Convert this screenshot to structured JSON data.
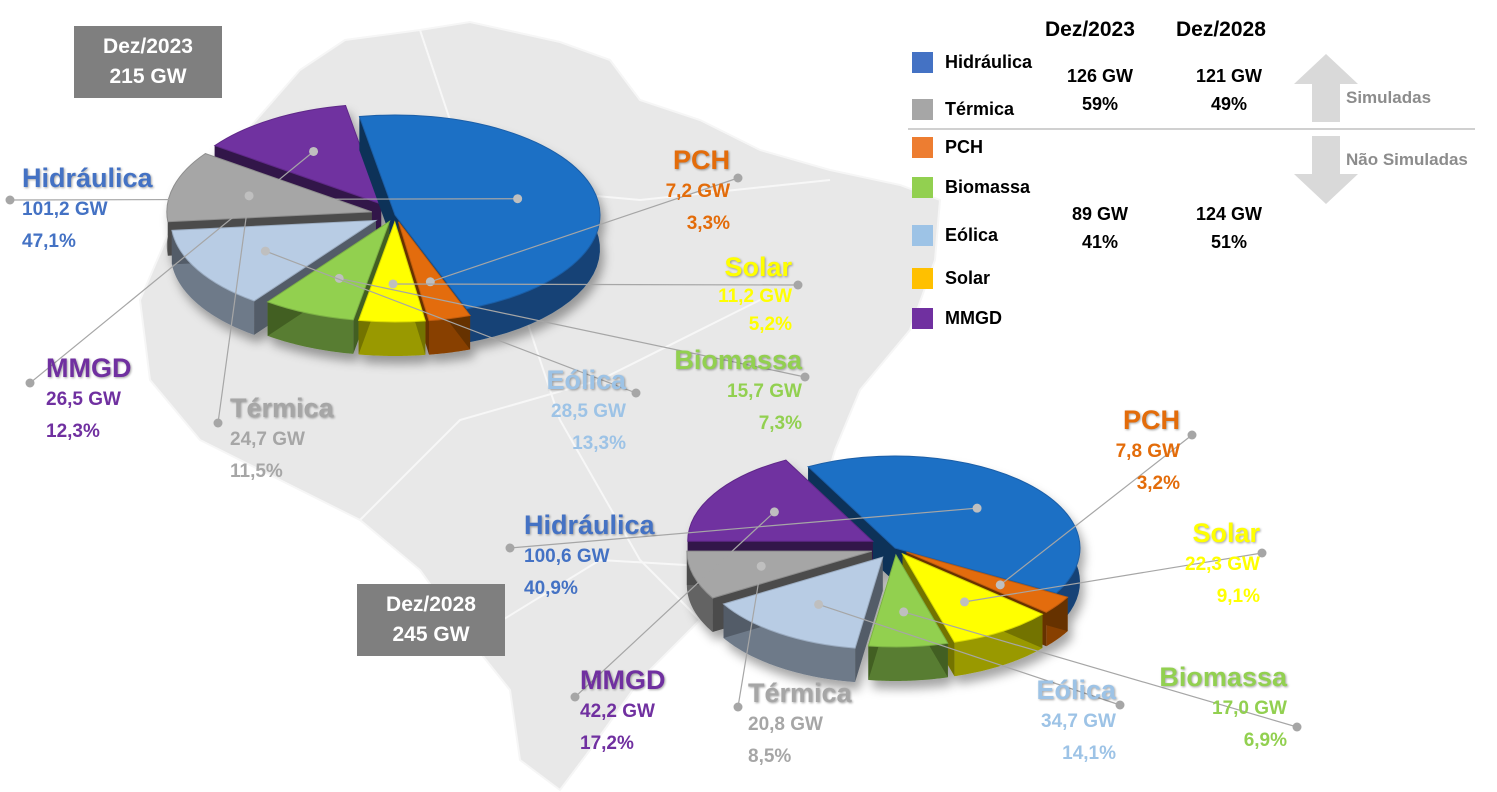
{
  "chart_data": [
    {
      "type": "pie",
      "title": "Dez/2023",
      "total": "215 GW",
      "slices": [
        {
          "name": "Hidráulica",
          "gw": "101,2 GW",
          "pct": "47,1%",
          "value": 47.1,
          "color": "#1f6fc5"
        },
        {
          "name": "PCH",
          "gw": "7,2 GW",
          "pct": "3,3%",
          "value": 3.3,
          "color": "#e36c0a"
        },
        {
          "name": "Solar",
          "gw": "11,2 GW",
          "pct": "5,2%",
          "value": 5.2,
          "color": "#ffff00"
        },
        {
          "name": "Biomassa",
          "gw": "15,7 GW",
          "pct": "7,3%",
          "value": 7.3,
          "color": "#92d050"
        },
        {
          "name": "Eólica",
          "gw": "28,5 GW",
          "pct": "13,3%",
          "value": 13.3,
          "color": "#b8cce4"
        },
        {
          "name": "Térmica",
          "gw": "24,7 GW",
          "pct": "11,5%",
          "value": 11.5,
          "color": "#a6a6a6"
        },
        {
          "name": "MMGD",
          "gw": "26,5 GW",
          "pct": "12,3%",
          "value": 12.3,
          "color": "#7030a0"
        }
      ]
    },
    {
      "type": "pie",
      "title": "Dez/2028",
      "total": "245 GW",
      "slices": [
        {
          "name": "Hidráulica",
          "gw": "100,6 GW",
          "pct": "40,9%",
          "value": 40.9,
          "color": "#1f6fc5"
        },
        {
          "name": "PCH",
          "gw": "7,8 GW",
          "pct": "3,2%",
          "value": 3.2,
          "color": "#e36c0a"
        },
        {
          "name": "Solar",
          "gw": "22,3 GW",
          "pct": "9,1%",
          "value": 9.1,
          "color": "#ffff00"
        },
        {
          "name": "Biomassa",
          "gw": "17,0 GW",
          "pct": "6,9%",
          "value": 6.9,
          "color": "#92d050"
        },
        {
          "name": "Eólica",
          "gw": "34,7 GW",
          "pct": "14,1%",
          "value": 14.1,
          "color": "#b8cce4"
        },
        {
          "name": "Térmica",
          "gw": "20,8 GW",
          "pct": "8,5%",
          "value": 8.5,
          "color": "#a6a6a6"
        },
        {
          "name": "MMGD",
          "gw": "42,2 GW",
          "pct": "17,2%",
          "value": 17.2,
          "color": "#7030a0"
        }
      ]
    }
  ],
  "label_colors": {
    "Hidráulica": "#4472c4",
    "PCH": "#e36c0a",
    "Solar": "#ffff00",
    "Biomassa": "#92d050",
    "Eólica": "#9dc3e6",
    "Térmica": "#a6a6a6",
    "MMGD": "#7030a0"
  },
  "legend": {
    "col_headers": [
      "Dez/2023",
      "Dez/2028"
    ],
    "items": [
      {
        "name": "Hidráulica",
        "color": "#4472c4"
      },
      {
        "name": "Térmica",
        "color": "#a6a6a6"
      },
      {
        "name": "PCH",
        "color": "#ed7d31"
      },
      {
        "name": "Biomassa",
        "color": "#92d050"
      },
      {
        "name": "Eólica",
        "color": "#9dc3e6"
      },
      {
        "name": "Solar",
        "color": "#ffc000"
      },
      {
        "name": "MMGD",
        "color": "#7030a0"
      }
    ],
    "simuladas": {
      "label": "Simuladas",
      "dez2023_gw": "126 GW",
      "dez2023_pct": "59%",
      "dez2028_gw": "121 GW",
      "dez2028_pct": "49%"
    },
    "nao_simuladas": {
      "label": "Não Simuladas",
      "dez2023_gw": "89 GW",
      "dez2023_pct": "41%",
      "dez2028_gw": "124 GW",
      "dez2028_pct": "51%"
    }
  }
}
